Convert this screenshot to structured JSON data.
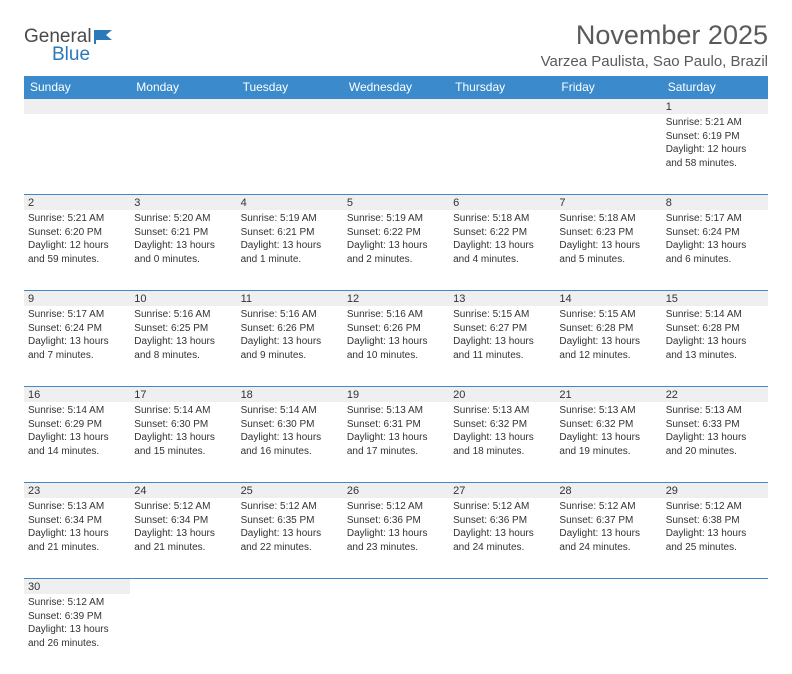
{
  "logo": {
    "text1": "General",
    "text2": "Blue",
    "icon_color": "#2b79b9",
    "text1_color": "#4a4a4a"
  },
  "title": "November 2025",
  "location": "Varzea Paulista, Sao Paulo, Brazil",
  "header_bg": "#3b8acb",
  "header_fg": "#ffffff",
  "stripe_bg": "#efefef",
  "border_color": "#3b8acb",
  "days": [
    "Sunday",
    "Monday",
    "Tuesday",
    "Wednesday",
    "Thursday",
    "Friday",
    "Saturday"
  ],
  "weeks": [
    [
      null,
      null,
      null,
      null,
      null,
      null,
      {
        "n": "1",
        "sr": "Sunrise: 5:21 AM",
        "ss": "Sunset: 6:19 PM",
        "dl": "Daylight: 12 hours and 58 minutes."
      }
    ],
    [
      {
        "n": "2",
        "sr": "Sunrise: 5:21 AM",
        "ss": "Sunset: 6:20 PM",
        "dl": "Daylight: 12 hours and 59 minutes."
      },
      {
        "n": "3",
        "sr": "Sunrise: 5:20 AM",
        "ss": "Sunset: 6:21 PM",
        "dl": "Daylight: 13 hours and 0 minutes."
      },
      {
        "n": "4",
        "sr": "Sunrise: 5:19 AM",
        "ss": "Sunset: 6:21 PM",
        "dl": "Daylight: 13 hours and 1 minute."
      },
      {
        "n": "5",
        "sr": "Sunrise: 5:19 AM",
        "ss": "Sunset: 6:22 PM",
        "dl": "Daylight: 13 hours and 2 minutes."
      },
      {
        "n": "6",
        "sr": "Sunrise: 5:18 AM",
        "ss": "Sunset: 6:22 PM",
        "dl": "Daylight: 13 hours and 4 minutes."
      },
      {
        "n": "7",
        "sr": "Sunrise: 5:18 AM",
        "ss": "Sunset: 6:23 PM",
        "dl": "Daylight: 13 hours and 5 minutes."
      },
      {
        "n": "8",
        "sr": "Sunrise: 5:17 AM",
        "ss": "Sunset: 6:24 PM",
        "dl": "Daylight: 13 hours and 6 minutes."
      }
    ],
    [
      {
        "n": "9",
        "sr": "Sunrise: 5:17 AM",
        "ss": "Sunset: 6:24 PM",
        "dl": "Daylight: 13 hours and 7 minutes."
      },
      {
        "n": "10",
        "sr": "Sunrise: 5:16 AM",
        "ss": "Sunset: 6:25 PM",
        "dl": "Daylight: 13 hours and 8 minutes."
      },
      {
        "n": "11",
        "sr": "Sunrise: 5:16 AM",
        "ss": "Sunset: 6:26 PM",
        "dl": "Daylight: 13 hours and 9 minutes."
      },
      {
        "n": "12",
        "sr": "Sunrise: 5:16 AM",
        "ss": "Sunset: 6:26 PM",
        "dl": "Daylight: 13 hours and 10 minutes."
      },
      {
        "n": "13",
        "sr": "Sunrise: 5:15 AM",
        "ss": "Sunset: 6:27 PM",
        "dl": "Daylight: 13 hours and 11 minutes."
      },
      {
        "n": "14",
        "sr": "Sunrise: 5:15 AM",
        "ss": "Sunset: 6:28 PM",
        "dl": "Daylight: 13 hours and 12 minutes."
      },
      {
        "n": "15",
        "sr": "Sunrise: 5:14 AM",
        "ss": "Sunset: 6:28 PM",
        "dl": "Daylight: 13 hours and 13 minutes."
      }
    ],
    [
      {
        "n": "16",
        "sr": "Sunrise: 5:14 AM",
        "ss": "Sunset: 6:29 PM",
        "dl": "Daylight: 13 hours and 14 minutes."
      },
      {
        "n": "17",
        "sr": "Sunrise: 5:14 AM",
        "ss": "Sunset: 6:30 PM",
        "dl": "Daylight: 13 hours and 15 minutes."
      },
      {
        "n": "18",
        "sr": "Sunrise: 5:14 AM",
        "ss": "Sunset: 6:30 PM",
        "dl": "Daylight: 13 hours and 16 minutes."
      },
      {
        "n": "19",
        "sr": "Sunrise: 5:13 AM",
        "ss": "Sunset: 6:31 PM",
        "dl": "Daylight: 13 hours and 17 minutes."
      },
      {
        "n": "20",
        "sr": "Sunrise: 5:13 AM",
        "ss": "Sunset: 6:32 PM",
        "dl": "Daylight: 13 hours and 18 minutes."
      },
      {
        "n": "21",
        "sr": "Sunrise: 5:13 AM",
        "ss": "Sunset: 6:32 PM",
        "dl": "Daylight: 13 hours and 19 minutes."
      },
      {
        "n": "22",
        "sr": "Sunrise: 5:13 AM",
        "ss": "Sunset: 6:33 PM",
        "dl": "Daylight: 13 hours and 20 minutes."
      }
    ],
    [
      {
        "n": "23",
        "sr": "Sunrise: 5:13 AM",
        "ss": "Sunset: 6:34 PM",
        "dl": "Daylight: 13 hours and 21 minutes."
      },
      {
        "n": "24",
        "sr": "Sunrise: 5:12 AM",
        "ss": "Sunset: 6:34 PM",
        "dl": "Daylight: 13 hours and 21 minutes."
      },
      {
        "n": "25",
        "sr": "Sunrise: 5:12 AM",
        "ss": "Sunset: 6:35 PM",
        "dl": "Daylight: 13 hours and 22 minutes."
      },
      {
        "n": "26",
        "sr": "Sunrise: 5:12 AM",
        "ss": "Sunset: 6:36 PM",
        "dl": "Daylight: 13 hours and 23 minutes."
      },
      {
        "n": "27",
        "sr": "Sunrise: 5:12 AM",
        "ss": "Sunset: 6:36 PM",
        "dl": "Daylight: 13 hours and 24 minutes."
      },
      {
        "n": "28",
        "sr": "Sunrise: 5:12 AM",
        "ss": "Sunset: 6:37 PM",
        "dl": "Daylight: 13 hours and 24 minutes."
      },
      {
        "n": "29",
        "sr": "Sunrise: 5:12 AM",
        "ss": "Sunset: 6:38 PM",
        "dl": "Daylight: 13 hours and 25 minutes."
      }
    ],
    [
      {
        "n": "30",
        "sr": "Sunrise: 5:12 AM",
        "ss": "Sunset: 6:39 PM",
        "dl": "Daylight: 13 hours and 26 minutes."
      },
      null,
      null,
      null,
      null,
      null,
      null
    ]
  ]
}
